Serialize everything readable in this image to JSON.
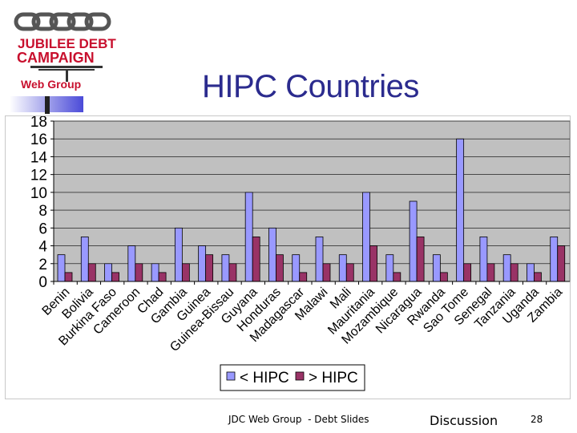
{
  "slide": {
    "title": "HIPC Countries",
    "logo": {
      "line1": "JUBILEE DEBT",
      "line2": "CAMPAIGN",
      "line3": "Web Group"
    },
    "footer": {
      "text": "JDC Web Group  - Debt Slides",
      "nav": "Discussion",
      "page": "28"
    }
  },
  "colors": {
    "title": "#2b2b8e",
    "plot_bg": "#c0c0c0",
    "series_lt": "#9999ff",
    "series_gt": "#993366",
    "logo_red": "#c8102e"
  },
  "chart_data": {
    "type": "bar",
    "categories": [
      "Benin",
      "Bolivia",
      "Burkina Faso",
      "Cameroon",
      "Chad",
      "Gambia",
      "Guinea",
      "Guinea-Bissau",
      "Guyana",
      "Honduras",
      "Madagascar",
      "Malawi",
      "Mali",
      "Mauritania",
      "Mozambique",
      "Nicaragua",
      "Rwanda",
      "Sao Tome",
      "Senegal",
      "Tanzania",
      "Uganda",
      "Zambia"
    ],
    "series": [
      {
        "name": "< HIPC",
        "values": [
          3,
          5,
          2,
          4,
          2,
          6,
          4,
          3,
          10,
          6,
          3,
          5,
          3,
          10,
          3,
          9,
          3,
          16,
          5,
          3,
          2,
          5
        ]
      },
      {
        "name": "> HIPC",
        "values": [
          1,
          2,
          1,
          2,
          1,
          2,
          3,
          2,
          5,
          3,
          1,
          2,
          2,
          4,
          1,
          5,
          1,
          2,
          2,
          2,
          1,
          4
        ]
      }
    ],
    "ylim": [
      0,
      18
    ],
    "yticks": [
      "0",
      "2",
      "4",
      "6",
      "8",
      "10",
      "12",
      "14",
      "16",
      "18"
    ],
    "grid": true,
    "legend_position": "bottom"
  }
}
